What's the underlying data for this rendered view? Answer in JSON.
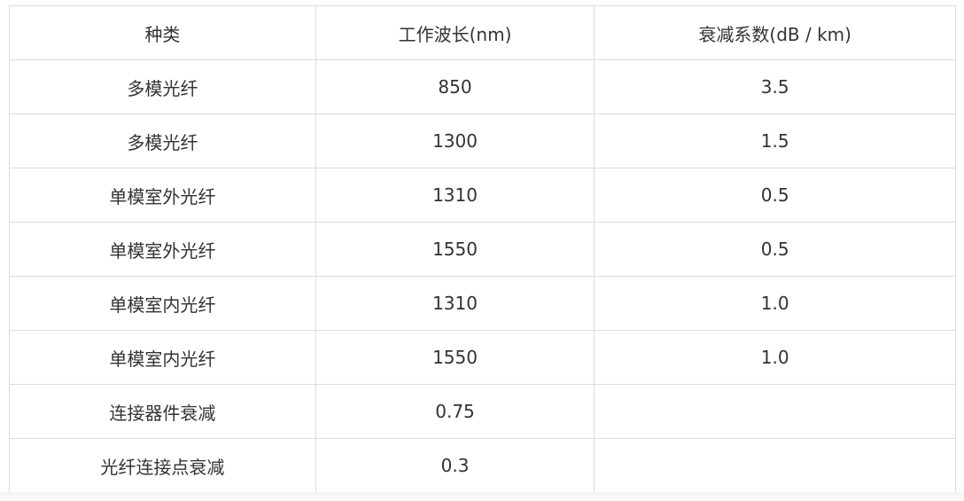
{
  "table": {
    "headers": [
      "种类",
      "工作波长(nm)",
      "衰减系数(dB / km)"
    ],
    "rows": [
      [
        "多模光纤",
        "850",
        "3.5"
      ],
      [
        "多模光纤",
        "1300",
        "1.5"
      ],
      [
        "单模室外光纤",
        "1310",
        "0.5"
      ],
      [
        "单模室外光纤",
        "1550",
        "0.5"
      ],
      [
        "单模室内光纤",
        "1310",
        "1.0"
      ],
      [
        "单模室内光纤",
        "1550",
        "1.0"
      ],
      [
        "连接器件衰减",
        "0.75",
        ""
      ],
      [
        "光纤连接点衰减",
        "0.3",
        ""
      ]
    ]
  }
}
